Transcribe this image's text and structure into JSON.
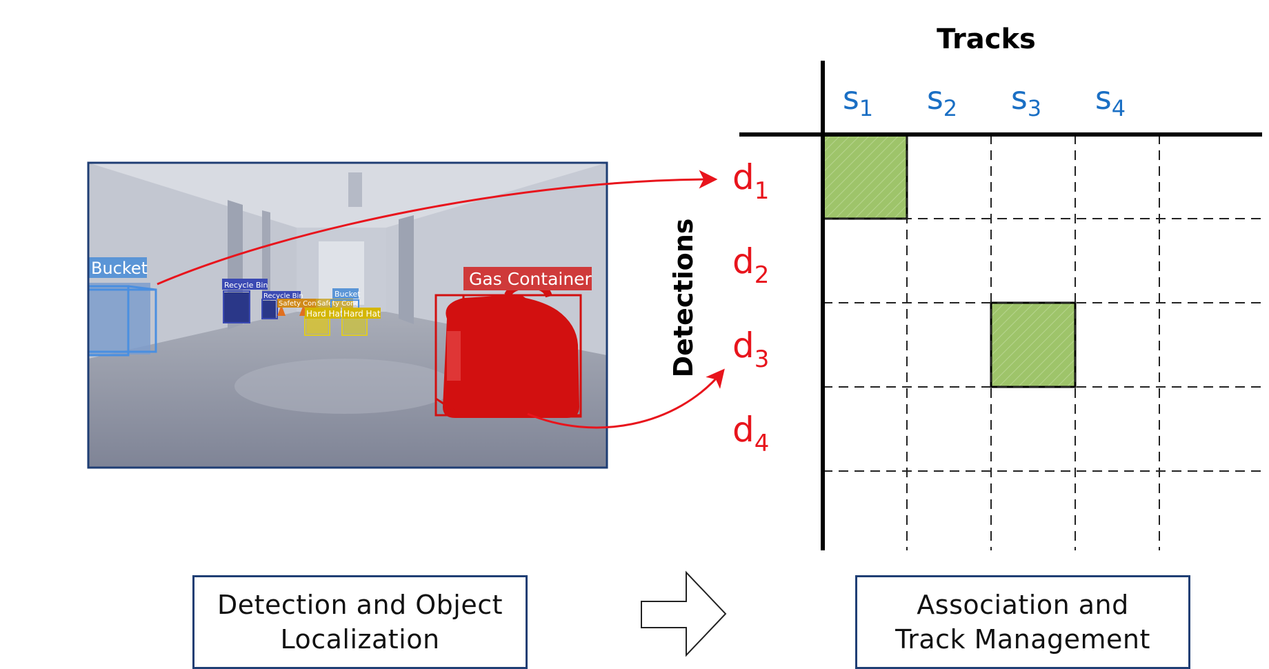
{
  "tracks_title": "Tracks",
  "detections_title": "Detections",
  "tracks": [
    "s1",
    "s2",
    "s3",
    "s4"
  ],
  "detections": [
    "d1",
    "d2",
    "d3",
    "d4"
  ],
  "detection_labels": [
    "Bucket",
    "Recycle Bin",
    "Recycle Bin",
    "Bucket",
    "Safety Cone",
    "Safety Cone",
    "Hard Hat",
    "Hard Hat",
    "Gas Container"
  ],
  "captions": {
    "left": [
      "Detection and Object",
      "Localization"
    ],
    "right": [
      "Association and",
      "Track Management"
    ]
  },
  "colors": {
    "track": "#1a6fc4",
    "detection": "#e8141c",
    "match": "#9ec46a",
    "box_border": "#1f3e74",
    "arrow": "#e8141c"
  },
  "matches": [
    {
      "detection": "d1",
      "track": "s1"
    },
    {
      "detection": "d3",
      "track": "s3"
    }
  ]
}
